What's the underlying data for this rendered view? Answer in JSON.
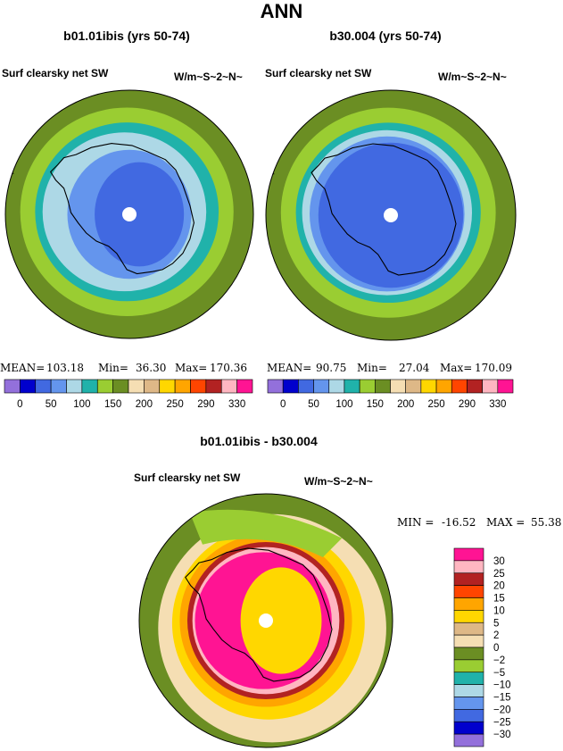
{
  "figure": {
    "title": "ANN"
  },
  "palettes": {
    "abs": [
      "#9370db",
      "#0000cd",
      "#4169e1",
      "#6495ed",
      "#add8e6",
      "#20b2aa",
      "#9acd32",
      "#6b8e23",
      "#f5deb3",
      "#deb887",
      "#ffd700",
      "#ffa500",
      "#ff4500",
      "#b22222",
      "#ffb6c1",
      "#ff1493"
    ],
    "diff": [
      "#9370db",
      "#0000cd",
      "#4169e1",
      "#6495ed",
      "#add8e6",
      "#20b2aa",
      "#9acd32",
      "#6b8e23",
      "#f5deb3",
      "#deb887",
      "#ffd700",
      "#ffa500",
      "#ff4500",
      "#b22222",
      "#ffb6c1",
      "#ff1493"
    ],
    "land": "#f8f8f8",
    "pole": "#ffffff"
  },
  "chart_data": [
    {
      "type": "heatmap",
      "projection": "south-polar-stereographic",
      "title": "b01.01ibis (yrs 50-74)",
      "variable": "Surf clearsky net SW",
      "units": "W/m~S~2~N~",
      "stats": {
        "mean_label": "MEAN=",
        "mean": "103.18",
        "min_label": "Min=",
        "min": "36.30",
        "max_label": "Max=",
        "max": "170.36"
      },
      "colorbar_ticks": [
        "0",
        "50",
        "100",
        "150",
        "200",
        "250",
        "290",
        "330"
      ],
      "contour_levels": [
        0,
        25,
        50,
        75,
        100,
        125,
        150,
        175,
        200,
        225,
        250,
        270,
        290,
        310,
        330
      ],
      "field_bands": [
        {
          "from_edge": "outer",
          "value_range": [
            150,
            175
          ]
        },
        {
          "value_range": [
            125,
            150
          ]
        },
        {
          "value_range": [
            100,
            125
          ]
        },
        {
          "value_range": [
            75,
            100
          ]
        },
        {
          "value_range": [
            50,
            75
          ]
        }
      ]
    },
    {
      "type": "heatmap",
      "projection": "south-polar-stereographic",
      "title": "b30.004 (yrs 50-74)",
      "variable": "Surf clearsky net SW",
      "units": "W/m~S~2~N~",
      "stats": {
        "mean_label": "MEAN=",
        "mean": "90.75",
        "min_label": "Min=",
        "min": "27.04",
        "max_label": "Max=",
        "max": "170.09"
      },
      "colorbar_ticks": [
        "0",
        "50",
        "100",
        "150",
        "200",
        "250",
        "290",
        "330"
      ],
      "contour_levels": [
        0,
        25,
        50,
        75,
        100,
        125,
        150,
        175,
        200,
        225,
        250,
        270,
        290,
        310,
        330
      ],
      "field_bands": [
        {
          "from_edge": "outer",
          "value_range": [
            150,
            175
          ]
        },
        {
          "value_range": [
            125,
            150
          ]
        },
        {
          "value_range": [
            100,
            125
          ]
        },
        {
          "value_range": [
            75,
            100
          ]
        },
        {
          "value_range": [
            50,
            75
          ]
        }
      ]
    },
    {
      "type": "heatmap",
      "projection": "south-polar-stereographic",
      "title": "b01.01ibis - b30.004",
      "variable": "Surf clearsky net SW",
      "units": "W/m~S~2~N~",
      "stats": {
        "min_label": "MIN =",
        "min": "-16.52",
        "max_label": "MAX =",
        "max": "55.38"
      },
      "colorbar_ticks": [
        "30",
        "25",
        "20",
        "15",
        "10",
        "5",
        "2",
        "0",
        "−2",
        "−5",
        "−10",
        "−15",
        "−20",
        "−25",
        "−30"
      ],
      "contour_levels": [
        -30,
        -25,
        -20,
        -15,
        -10,
        -5,
        -2,
        0,
        2,
        5,
        10,
        15,
        20,
        25,
        30
      ],
      "field_bands": [
        {
          "from_edge": "outer",
          "value_range": [
            -2,
            0
          ]
        },
        {
          "value_range": [
            0,
            2
          ]
        },
        {
          "value_range": [
            5,
            10
          ]
        },
        {
          "value_range": [
            15,
            20
          ]
        },
        {
          "value_range": [
            30,
            55.38
          ]
        },
        {
          "value_range": [
            5,
            10
          ]
        }
      ]
    }
  ]
}
